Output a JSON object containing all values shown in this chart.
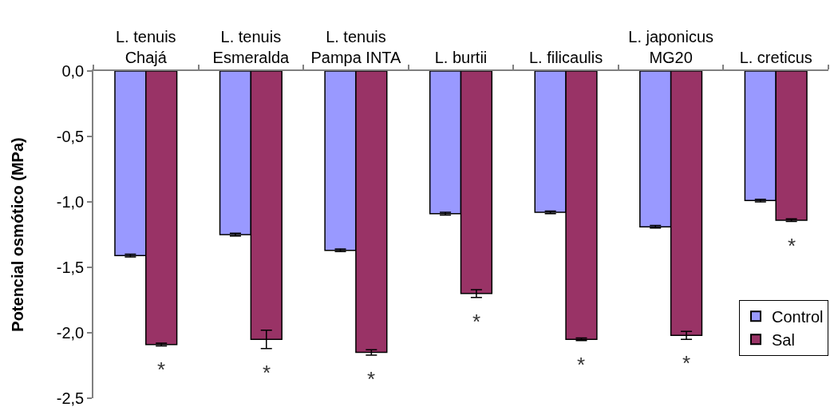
{
  "chart_data": {
    "type": "bar",
    "ylabel": "Potencial osmótico (MPa)",
    "categories": [
      "L. tenuis\nChajá",
      "L. tenuis\nEsmeralda",
      "L. tenuis\nPampa INTA",
      "L. burtii",
      "L. filicaulis",
      "L. japonicus\nMG20",
      "L. creticus"
    ],
    "series": [
      {
        "name": "Control",
        "color": "#9999ff",
        "values": [
          -1.41,
          -1.25,
          -1.37,
          -1.09,
          -1.08,
          -1.19,
          -0.99
        ],
        "errors": [
          0.01,
          0.01,
          0.01,
          0.01,
          0.01,
          0.01,
          0.01
        ]
      },
      {
        "name": "Sal",
        "color": "#993366",
        "values": [
          -2.09,
          -2.05,
          -2.15,
          -1.7,
          -2.05,
          -2.02,
          -1.14
        ],
        "errors": [
          0.01,
          0.07,
          0.02,
          0.03,
          0.01,
          0.03,
          0.01
        ]
      }
    ],
    "ylim": [
      -2.5,
      0
    ],
    "yticks": [
      {
        "value": -2.5,
        "label": "-2,5"
      },
      {
        "value": -2.0,
        "label": "-2,0"
      },
      {
        "value": -1.5,
        "label": "-1,5"
      },
      {
        "value": -1.0,
        "label": "-1,0"
      },
      {
        "value": -0.5,
        "label": "-0,5"
      },
      {
        "value": 0,
        "label": "0,0"
      }
    ],
    "legend": "bottom right",
    "annotations": [
      {
        "text": "*",
        "x": "L. tenuis\nChajá",
        "y": -2.09
      },
      {
        "text": "*",
        "x": "L. tenuis\nEsmeralda",
        "y": -2.05
      },
      {
        "text": "*",
        "x": "L. tenuis\nPampa INTA",
        "y": -2.15
      },
      {
        "text": "*",
        "x": "L. burtii",
        "y": -1.7
      },
      {
        "text": "*",
        "x": "L. filicaulis",
        "y": -2.05
      },
      {
        "text": "*",
        "x": "L. japonicus\nMG20",
        "y": -2.02
      },
      {
        "text": "*",
        "x": "L. creticus",
        "y": -1.14
      }
    ]
  }
}
